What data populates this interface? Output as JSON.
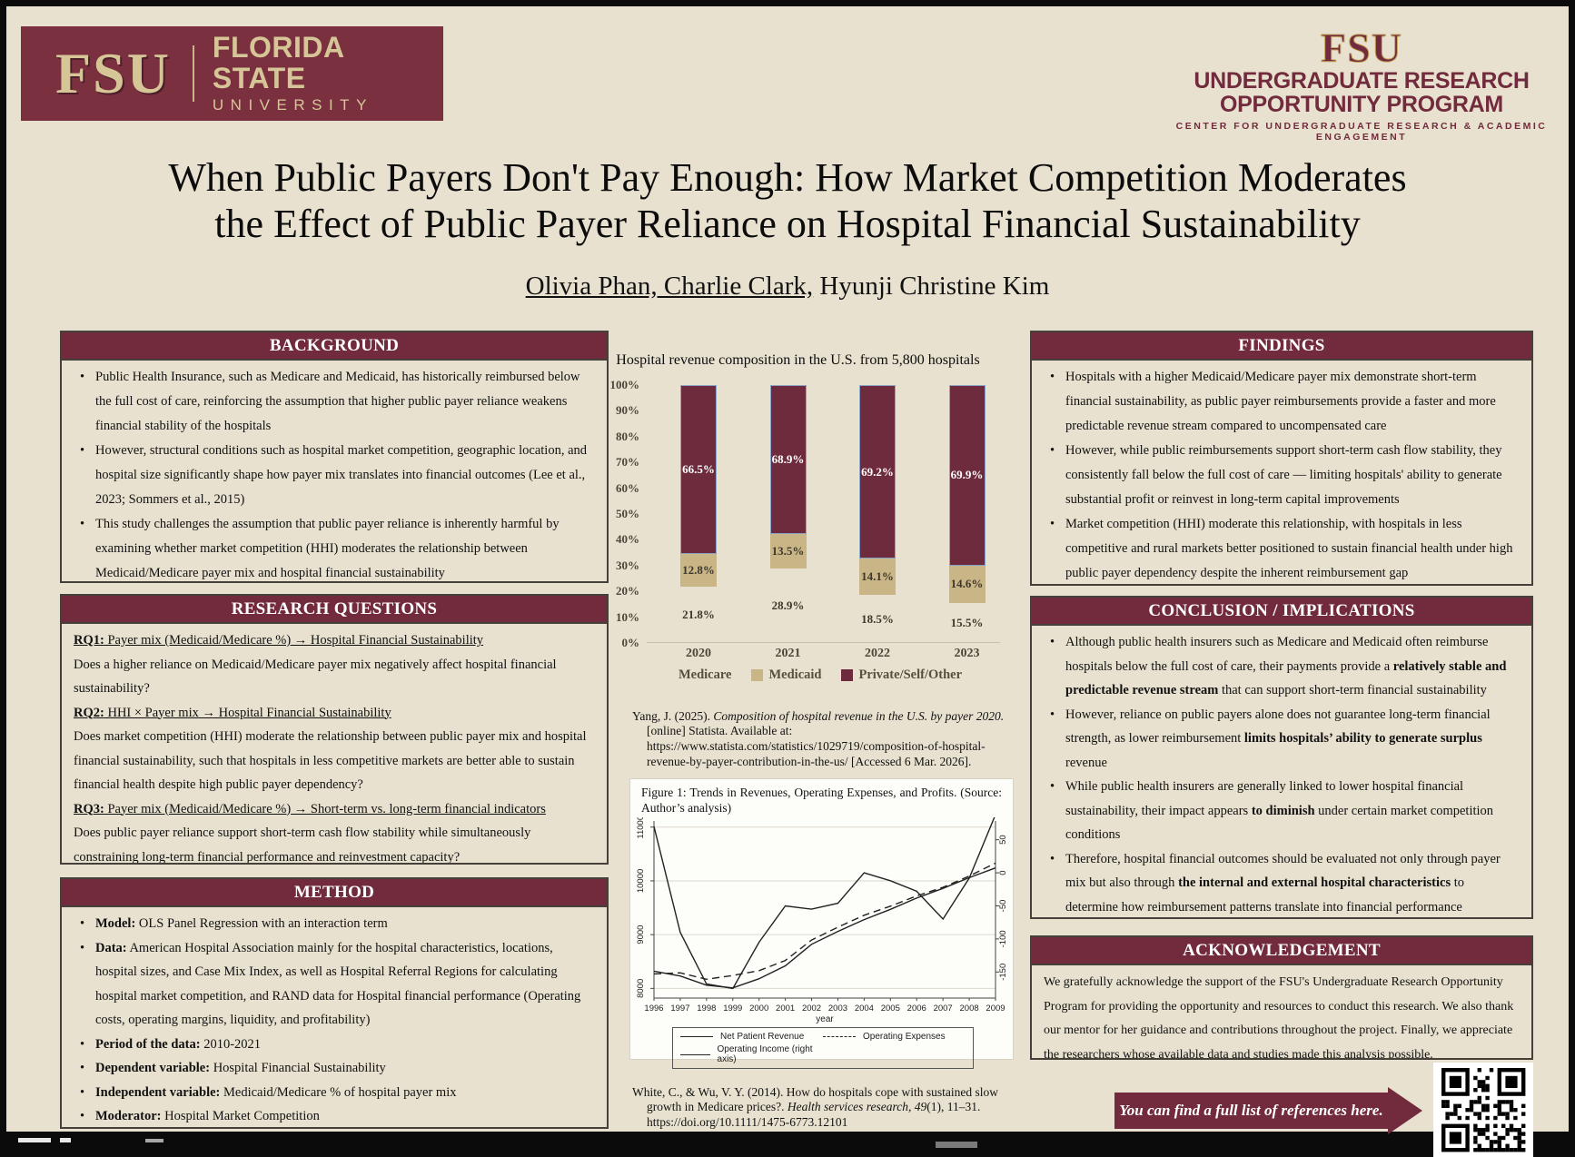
{
  "poster": {
    "bg": "#e8e1cf",
    "garnet": "#712b3d",
    "frame": "#0b0b0b"
  },
  "logo_left": {
    "monogram": "FSU",
    "line1": "FLORIDA STATE",
    "line2": "UNIVERSITY"
  },
  "logo_right": {
    "monogram": "FSU",
    "line1": "UNDERGRADUATE RESEARCH",
    "line2": "OPPORTUNITY PROGRAM",
    "line3": "CENTER FOR UNDERGRADUATE RESEARCH & ACADEMIC ENGAGEMENT"
  },
  "title": {
    "line1": "When Public Payers Don't Pay Enough: How Market Competition Moderates",
    "line2": "the Effect of Public Payer Reliance on Hospital Financial Sustainability"
  },
  "authors": {
    "underlined": "Olivia Phan, Charlie Clark,",
    "rest": " Hyunji Christine Kim"
  },
  "sections": {
    "background": {
      "title": "BACKGROUND",
      "items": [
        "Public Health Insurance, such as Medicare and Medicaid, has historically reimbursed below the full cost of care, reinforcing the assumption that higher public payer reliance weakens financial stability of the hospitals",
        "However, structural conditions such as hospital market competition, geographic location, and hospital size significantly shape how payer mix translates into financial outcomes (Lee et al., 2023; Sommers et al., 2015)",
        "This study challenges the assumption that public payer reliance is inherently harmful by examining whether market competition (HHI) moderates the relationship between Medicaid/Medicare payer mix and hospital financial sustainability"
      ]
    },
    "research_questions": {
      "title": "RESEARCH QUESTIONS",
      "lines": [
        [
          {
            "t": "RQ1:",
            "b": 1,
            "u": 1
          },
          {
            "t": " Payer mix (Medicaid/Medicare %) → Hospital Financial Sustainability",
            "u": 1
          }
        ],
        [
          {
            "t": "Does a higher reliance on Medicaid/Medicare payer mix negatively affect hospital financial sustainability?"
          }
        ],
        [
          {
            "t": "RQ2:",
            "b": 1,
            "u": 1
          },
          {
            "t": " HHI × Payer mix → Hospital Financial Sustainability",
            "u": 1
          }
        ],
        [
          {
            "t": "Does market competition (HHI) moderate the relationship between public payer mix and hospital financial sustainability, such that hospitals in less competitive markets are better able to sustain financial health despite high public payer dependency?"
          }
        ],
        [
          {
            "t": "RQ3:",
            "b": 1,
            "u": 1
          },
          {
            "t": " Payer mix (Medicaid/Medicare %) → Short-term vs. long-term financial indicators",
            "u": 1
          }
        ],
        [
          {
            "t": "Does public payer reliance support short-term cash flow stability while simultaneously constraining long-term financial performance and reinvestment capacity?"
          }
        ]
      ]
    },
    "method": {
      "title": "METHOD",
      "items": [
        [
          {
            "t": "Model:",
            "b": 1
          },
          {
            "t": " OLS Panel Regression with an interaction term"
          }
        ],
        [
          {
            "t": "Data:",
            "b": 1
          },
          {
            "t": " American Hospital Association mainly for the hospital characteristics, locations, hospital sizes, and Case Mix Index, as well as Hospital Referral Regions for calculating hospital market competition, and RAND data for Hospital financial performance (Operating costs, operating margins, liquidity, and profitability)"
          }
        ],
        [
          {
            "t": "Period of the data:",
            "b": 1
          },
          {
            "t": " 2010-2021"
          }
        ],
        [
          {
            "t": "Dependent variable:",
            "b": 1
          },
          {
            "t": " Hospital Financial Sustainability"
          }
        ],
        [
          {
            "t": "Independent variable:",
            "b": 1
          },
          {
            "t": " Medicaid/Medicare % of hospital payer mix"
          }
        ],
        [
          {
            "t": "Moderator:",
            "b": 1
          },
          {
            "t": " Hospital Market Competition"
          }
        ]
      ]
    },
    "findings": {
      "title": "FINDINGS",
      "items": [
        "Hospitals with a higher Medicaid/Medicare payer mix demonstrate short-term financial sustainability, as public payer reimbursements provide a faster and more predictable revenue stream compared to uncompensated care",
        "However, while public reimbursements support short-term cash flow stability, they consistently fall below the full cost of care — limiting hospitals' ability to generate substantial profit or reinvest in long-term capital improvements",
        "Market competition (HHI) moderate this relationship, with hospitals in less competitive and rural markets better positioned to sustain financial health under high public payer dependency despite the inherent reimbursement gap"
      ]
    },
    "conclusion": {
      "title": "CONCLUSION / IMPLICATIONS",
      "items": [
        [
          {
            "t": "Although public health insurers such as Medicare and Medicaid often reimburse hospitals below the full cost of care, their payments provide a "
          },
          {
            "t": "relatively stable and predictable revenue stream",
            "b": 1
          },
          {
            "t": " that can support short-term financial sustainability"
          }
        ],
        [
          {
            "t": " However, reliance on public payers alone does not guarantee long-term financial strength, as lower reimbursement "
          },
          {
            "t": "limits hospitals’ ability to generate surplus",
            "b": 1
          },
          {
            "t": " revenue"
          }
        ],
        [
          {
            "t": "While public health insurers are generally linked to lower hospital financial sustainability, their impact appears "
          },
          {
            "t": "to diminish",
            "b": 1
          },
          {
            "t": " under certain market competition conditions"
          }
        ],
        [
          {
            "t": "Therefore, hospital financial outcomes should be evaluated not only through payer mix but also through "
          },
          {
            "t": "the internal and external hospital characteristics",
            "b": 1
          },
          {
            "t": " to determine how reimbursement patterns translate into financial performance"
          }
        ]
      ]
    },
    "acknowledgement": {
      "title": "ACKNOWLEDGEMENT",
      "text": "We gratefully acknowledge the support of the FSU's Undergraduate Research Opportunity Program for providing the opportunity and resources to conduct this research. We also thank our mentor for her guidance and contributions throughout the project. Finally, we appreciate the researchers whose available data and studies made this analysis possible."
    }
  },
  "references_arrow": {
    "label": "You can find a full list of references here."
  },
  "citations": {
    "statista": [
      {
        "t": "Yang, J. (2025). "
      },
      {
        "t": "Composition of hospital revenue in the U.S. by payer 2020.",
        "i": 1
      },
      {
        "t": " [online] Statista. Available at: https://www.statista.com/statistics/1029719/composition-of-hospital-revenue-by-payer-contribution-in-the-us/ [Accessed 6 Mar. 2026]."
      }
    ],
    "white_wu": [
      {
        "t": "White, C., & Wu, V. Y. (2014). How do hospitals cope with sustained slow growth in Medicare prices?. "
      },
      {
        "t": "Health services research, 49",
        "i": 1
      },
      {
        "t": "(1), 11–31. https://doi.org/10.1111/1475-6773.12101"
      }
    ]
  },
  "chart_data": [
    {
      "type": "bar",
      "stacked": true,
      "title": "Hospital revenue composition in the U.S. from 5,800 hospitals",
      "categories": [
        "2020",
        "2021",
        "2022",
        "2023"
      ],
      "series": [
        {
          "name": "Medicare",
          "color": "transparent",
          "label_color": "#3e382c",
          "values": [
            21.8,
            28.9,
            18.5,
            15.5
          ]
        },
        {
          "name": "Medicaid",
          "color": "#c9b586",
          "label_color": "#3e382c",
          "values": [
            12.8,
            13.5,
            14.1,
            14.6
          ]
        },
        {
          "name": "Private/Self/Other",
          "color": "#6e2b3d",
          "label_color": "#ffffff",
          "values": [
            66.5,
            68.9,
            69.2,
            69.9
          ]
        }
      ],
      "ylim": [
        0,
        100
      ],
      "yticks": [
        "0%",
        "10%",
        "20%",
        "30%",
        "40%",
        "50%",
        "60%",
        "70%",
        "80%",
        "90%",
        "100%"
      ],
      "legend_position": "bottom"
    },
    {
      "type": "line",
      "caption": "Figure 1:  Trends in Revenues, Operating Expenses, and Profits. (Source: Author’s analysis)",
      "x": [
        1996,
        1997,
        1998,
        1999,
        2000,
        2001,
        2002,
        2003,
        2004,
        2005,
        2006,
        2007,
        2008,
        2009
      ],
      "xlabel": "year",
      "left_axis": {
        "ticks": [
          8000,
          9000,
          10000,
          11000
        ],
        "domain": [
          7820,
          11080
        ]
      },
      "right_axis": {
        "ticks": [
          50,
          0,
          -50,
          -100,
          -150
        ],
        "zero_at_left": 10150,
        "left_units_per_right_unit": 12.3
      },
      "series": [
        {
          "name": "Net Patient Revenue",
          "axis": "left",
          "dash": false,
          "values": [
            8320,
            8230,
            8060,
            8010,
            8180,
            8420,
            8820,
            9060,
            9280,
            9470,
            9680,
            9860,
            10060,
            10240
          ]
        },
        {
          "name": "Operating Expenses",
          "axis": "left",
          "dash": true,
          "values": [
            8270,
            8290,
            8170,
            8240,
            8330,
            8520,
            8900,
            9140,
            9360,
            9530,
            9720,
            9880,
            10090,
            10330
          ]
        },
        {
          "name": "Operating Income (right axis)",
          "axis": "right",
          "dash": false,
          "values": [
            70,
            -90,
            -168,
            -175,
            -105,
            -50,
            -55,
            -46,
            0,
            -12,
            -28,
            -70,
            -8,
            88
          ]
        }
      ]
    }
  ]
}
